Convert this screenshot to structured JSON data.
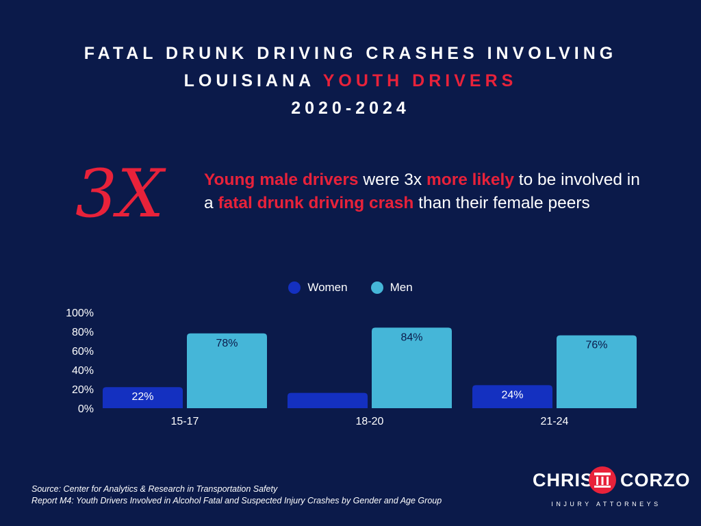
{
  "title": {
    "line1": "FATAL DRUNK DRIVING CRASHES INVOLVING",
    "line2_prefix": "LOUISIANA ",
    "line2_accent": "YOUTH DRIVERS",
    "line3": "2020-2024"
  },
  "headline_stat": "3X",
  "statement": {
    "hl1": "Young male drivers",
    "t1": " were 3x ",
    "hl2": "more likely",
    "t2": " to be involved in a ",
    "hl3": "fatal drunk driving crash",
    "t3": " than their female peers"
  },
  "source": {
    "line1": "Source: Center for Analytics & Research in Transportation Safety",
    "line2": "Report M4: Youth Drivers Involved in Alcohol Fatal and Suspected Injury Crashes by Gender and Age Group"
  },
  "logo": {
    "left": "CHRIS",
    "right": "CORZO",
    "tagline": "INJURY ATTORNEYS"
  },
  "colors": {
    "background": "#0b1a4a",
    "accent": "#e8223a",
    "women": "#1430c0",
    "men": "#45b6d8"
  },
  "chart_data": {
    "type": "bar",
    "categories": [
      "15-17",
      "18-20",
      "21-24"
    ],
    "series": [
      {
        "name": "Women",
        "values": [
          22,
          16,
          24
        ],
        "labels": [
          "22%",
          "",
          "24%"
        ]
      },
      {
        "name": "Men",
        "values": [
          78,
          84,
          76
        ],
        "labels": [
          "78%",
          "84%",
          "76%"
        ]
      }
    ],
    "ylim": [
      0,
      100
    ],
    "yticks": [
      "0%",
      "20%",
      "40%",
      "60%",
      "80%",
      "100%"
    ],
    "grid": false,
    "legend": "top-center"
  }
}
